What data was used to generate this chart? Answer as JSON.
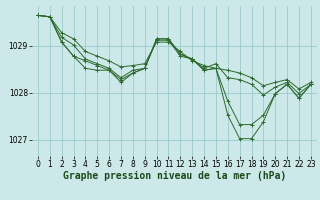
{
  "background_color": "#cce8e8",
  "grid_color": "#99cccc",
  "line_color": "#2d6a2d",
  "xlabel": "Graphe pression niveau de la mer (hPa)",
  "xlabel_fontsize": 7.0,
  "tick_fontsize": 5.5,
  "ylabel_fontsize": 5.5,
  "xlim": [
    -0.5,
    23.5
  ],
  "ylim": [
    1026.65,
    1029.85
  ],
  "yticks": [
    1027,
    1028,
    1029
  ],
  "xticks": [
    0,
    1,
    2,
    3,
    4,
    5,
    6,
    7,
    8,
    9,
    10,
    11,
    12,
    13,
    14,
    15,
    16,
    17,
    18,
    19,
    20,
    21,
    22,
    23
  ],
  "series": [
    [
      1029.65,
      1029.62,
      1029.28,
      1029.15,
      1028.88,
      1028.78,
      1028.68,
      1028.55,
      1028.58,
      1028.62,
      1029.08,
      1029.08,
      1028.88,
      1028.68,
      1028.58,
      1028.52,
      1028.48,
      1028.42,
      1028.32,
      1028.15,
      1028.22,
      1028.28,
      1028.08,
      1028.22
    ],
    [
      1029.65,
      1029.62,
      1029.18,
      1029.02,
      1028.72,
      1028.62,
      1028.52,
      1028.32,
      1028.48,
      1028.52,
      1029.12,
      1029.12,
      1028.78,
      1028.72,
      1028.52,
      1028.62,
      1028.32,
      1028.28,
      1028.18,
      1027.95,
      1028.12,
      1028.22,
      1027.98,
      1028.18
    ],
    [
      1029.65,
      1029.62,
      1029.08,
      1028.78,
      1028.52,
      1028.48,
      1028.48,
      1028.22,
      1028.42,
      1028.52,
      1029.15,
      1029.15,
      1028.82,
      1028.72,
      1028.48,
      1028.52,
      1027.82,
      1027.32,
      1027.32,
      1027.52,
      1027.98,
      1028.18,
      1027.88,
      1028.18
    ],
    [
      1029.65,
      1029.62,
      1029.08,
      1028.78,
      1028.68,
      1028.58,
      1028.48,
      1028.28,
      1028.42,
      1028.52,
      1029.15,
      1029.15,
      1028.82,
      1028.72,
      1028.48,
      1028.52,
      1027.52,
      1027.02,
      1027.02,
      1027.38,
      1027.98,
      1028.18,
      1027.88,
      1028.18
    ]
  ]
}
